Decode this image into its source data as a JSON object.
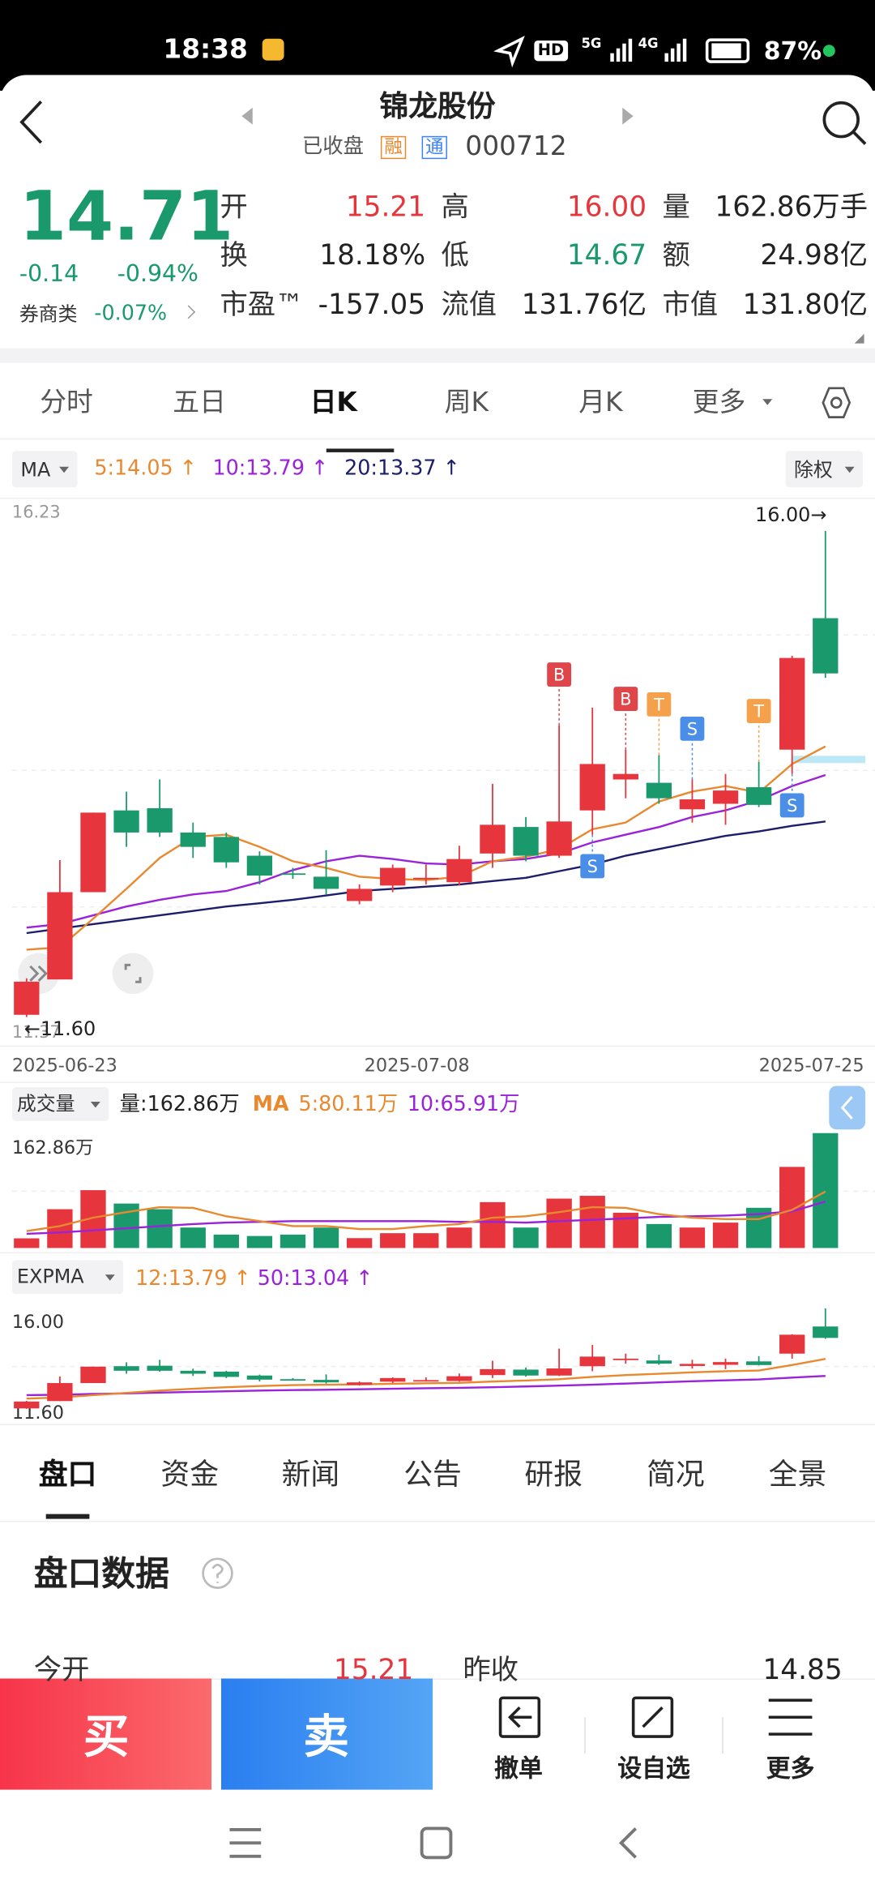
{
  "status_bar": {
    "time": "18:38",
    "battery": "87%",
    "network": [
      "HD",
      "5G",
      "4G"
    ]
  },
  "header": {
    "title": "锦龙股份",
    "status": "已收盘",
    "badges": [
      "融",
      "通"
    ],
    "code": "000712"
  },
  "quote": {
    "price": "14.71",
    "change": "-0.14",
    "change_pct": "-0.94%",
    "sector": "券商类",
    "sector_pct": "-0.07%",
    "fields": [
      [
        "开",
        "15.21"
      ],
      [
        "高",
        "16.00"
      ],
      [
        "量",
        "162.86万手"
      ],
      [
        "换",
        "18.18%"
      ],
      [
        "低",
        "14.67"
      ],
      [
        "额",
        "24.98亿"
      ],
      [
        "市盈™",
        "-157.05"
      ],
      [
        "流值",
        "131.76亿"
      ],
      [
        "市值",
        "131.80亿"
      ]
    ]
  },
  "tabs": [
    "分时",
    "五日",
    "日K",
    "周K",
    "月K",
    "更多"
  ],
  "colors": {
    "up": "#e6353c",
    "down": "#1a9a6c",
    "ma5": "#e8892f",
    "ma10": "#9a22d8",
    "ma20": "#1c1d6b"
  },
  "kline": {
    "indicator": "MA",
    "legend": [
      "5:14.05 ↑",
      "10:13.79 ↑",
      "20:13.37 ↑"
    ],
    "adjust": "除权",
    "ylim": [
      11.37,
      16.23
    ],
    "yticks": [
      16.23,
      11.37
    ],
    "high_note": "16.00→",
    "low_note": "←11.60",
    "dates": [
      "2025-06-23",
      "2025-07-08",
      "2025-07-25"
    ],
    "open": [
      11.62,
      11.94,
      12.73,
      13.47,
      13.49,
      13.27,
      13.23,
      13.06,
      12.9,
      12.87,
      12.65,
      12.79,
      12.85,
      12.82,
      13.08,
      13.32,
      13.06,
      13.47,
      13.75,
      13.72,
      13.48,
      13.53,
      13.68,
      14.02,
      15.21
    ],
    "high": [
      11.95,
      13.02,
      13.45,
      13.64,
      13.75,
      13.36,
      13.27,
      13.1,
      12.95,
      13.11,
      12.8,
      12.98,
      12.98,
      13.15,
      13.71,
      13.41,
      14.24,
      14.4,
      14.02,
      13.97,
      13.75,
      13.8,
      13.91,
      14.87,
      16.0
    ],
    "low": [
      11.6,
      11.94,
      12.73,
      13.14,
      13.23,
      13.04,
      12.95,
      12.8,
      12.85,
      12.71,
      12.62,
      12.73,
      12.8,
      12.79,
      12.95,
      13.01,
      13.04,
      13.25,
      13.58,
      13.53,
      13.36,
      13.34,
      13.5,
      13.8,
      14.67
    ],
    "close": [
      11.92,
      12.73,
      13.45,
      13.27,
      13.27,
      13.14,
      13.0,
      12.88,
      12.89,
      12.76,
      12.76,
      12.95,
      12.86,
      13.03,
      13.34,
      13.06,
      13.37,
      13.89,
      13.8,
      13.58,
      13.57,
      13.65,
      13.52,
      14.85,
      14.71
    ],
    "ma5": [
      12.21,
      12.23,
      12.49,
      12.76,
      13.04,
      13.23,
      13.25,
      13.14,
      13.01,
      12.95,
      12.87,
      12.85,
      12.84,
      12.87,
      13.01,
      13.05,
      13.12,
      13.3,
      13.36,
      13.55,
      13.64,
      13.69,
      13.63,
      13.89,
      14.05
    ],
    "ma10": [
      12.41,
      12.44,
      12.52,
      12.6,
      12.66,
      12.71,
      12.74,
      12.82,
      12.93,
      13.01,
      13.06,
      13.03,
      12.99,
      12.98,
      13.01,
      13.03,
      13.08,
      13.18,
      13.25,
      13.32,
      13.41,
      13.47,
      13.56,
      13.69,
      13.79
    ],
    "ma20": [
      12.36,
      12.4,
      12.44,
      12.48,
      12.52,
      12.56,
      12.6,
      12.63,
      12.66,
      12.7,
      12.74,
      12.76,
      12.78,
      12.8,
      12.83,
      12.86,
      12.92,
      12.98,
      13.06,
      13.12,
      13.18,
      13.24,
      13.28,
      13.33,
      13.37
    ],
    "signals": [
      null,
      null,
      null,
      null,
      null,
      null,
      null,
      null,
      null,
      null,
      null,
      null,
      null,
      null,
      null,
      null,
      "B",
      "S",
      "B",
      "T",
      "S",
      null,
      "T",
      "S",
      null
    ]
  },
  "volume": {
    "indicator": "成交量",
    "legend": [
      "量:162.86万",
      "MA",
      "5:80.11万",
      "10:65.91万"
    ],
    "ylim": [
      0,
      162.86
    ],
    "yticks": [
      {
        "value": 162.86,
        "label": "162.86万"
      }
    ],
    "values": [
      13.7,
      55,
      82,
      63,
      55,
      29,
      19,
      17,
      19,
      29,
      14,
      21,
      21,
      29,
      65,
      29,
      70,
      74,
      50,
      34,
      29,
      36,
      57,
      115,
      162.86
    ],
    "ma5": [
      24,
      31,
      43,
      51,
      58,
      57,
      45,
      38,
      31,
      31,
      27,
      27,
      31,
      34,
      43,
      45,
      51,
      58,
      57,
      48,
      43,
      41,
      41,
      54,
      80.11
    ],
    "ma10": [
      20,
      22,
      25,
      28,
      31,
      34,
      36,
      37,
      38,
      38,
      38,
      38,
      38,
      37,
      37,
      36,
      38,
      40,
      42,
      44,
      45,
      46,
      48,
      52,
      65.91
    ]
  },
  "expma": {
    "indicator": "EXPMA",
    "legend": [
      "12:13.79 ↑",
      "50:13.04 ↑"
    ],
    "ylim": [
      11.6,
      16
    ],
    "yticks": [
      {
        "value": 16,
        "label": "16.00"
      },
      {
        "value": 11.6,
        "label": "11.60"
      }
    ],
    "ema12": [
      12.05,
      12.1,
      12.2,
      12.3,
      12.4,
      12.48,
      12.55,
      12.6,
      12.64,
      12.66,
      12.67,
      12.7,
      12.72,
      12.74,
      12.8,
      12.84,
      12.9,
      13.0,
      13.08,
      13.14,
      13.2,
      13.25,
      13.28,
      13.52,
      13.79
    ],
    "ema50": [
      12.2,
      12.22,
      12.25,
      12.28,
      12.31,
      12.34,
      12.37,
      12.4,
      12.42,
      12.44,
      12.46,
      12.48,
      12.5,
      12.52,
      12.55,
      12.58,
      12.62,
      12.66,
      12.71,
      12.76,
      12.81,
      12.85,
      12.89,
      12.97,
      13.04
    ]
  },
  "detail_tabs": [
    "盘口",
    "资金",
    "新闻",
    "公告",
    "研报",
    "简况",
    "全景"
  ],
  "section": {
    "title": "盘口数据",
    "rows": [
      [
        "今开",
        "15.21"
      ],
      [
        "昨收",
        "14.85"
      ]
    ]
  },
  "actions": {
    "buy": "买",
    "sell": "卖",
    "items": [
      "撤单",
      "设自选",
      "更多"
    ]
  }
}
